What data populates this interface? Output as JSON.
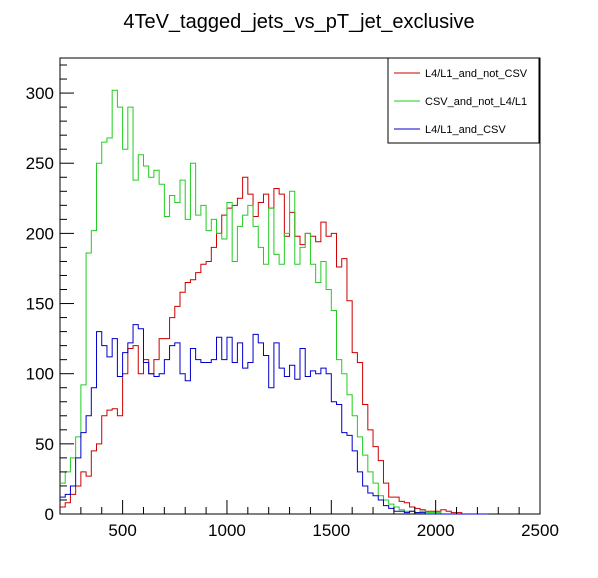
{
  "chart_data": {
    "type": "line",
    "step": true,
    "title": "4TeV_tagged_jets_vs_pT_jet_exclusive",
    "xlabel": "",
    "ylabel": "",
    "xlim": [
      200,
      2500
    ],
    "ylim": [
      0,
      325
    ],
    "bin_width": 25,
    "x_start": 200,
    "x_ticks": [
      500,
      1000,
      1500,
      2000,
      2500
    ],
    "y_ticks": [
      0,
      50,
      100,
      150,
      200,
      250,
      300
    ],
    "x_tick_labels": [
      "500",
      "1000",
      "1500",
      "2000",
      "2500"
    ],
    "y_tick_labels": [
      "0",
      "50",
      "100",
      "150",
      "200",
      "250",
      "300"
    ],
    "grid": false,
    "legend_position": "top-right",
    "series": [
      {
        "name": "L4/L1_and_not_CSV",
        "color": "#cc0000",
        "values": [
          5,
          8,
          14,
          20,
          30,
          27,
          45,
          50,
          70,
          74,
          75,
          70,
          100,
          118,
          120,
          100,
          110,
          100,
          110,
          125,
          125,
          140,
          148,
          158,
          165,
          167,
          172,
          178,
          180,
          190,
          200,
          213,
          218,
          220,
          225,
          240,
          228,
          212,
          222,
          228,
          218,
          232,
          228,
          198,
          215,
          198,
          192,
          200,
          198,
          194,
          208,
          198,
          200,
          176,
          182,
          152,
          115,
          108,
          78,
          60,
          48,
          38,
          22,
          12,
          12,
          9,
          8,
          5,
          4,
          3,
          2,
          2,
          2,
          3,
          2,
          1,
          1,
          0,
          0,
          0,
          0,
          0
        ]
      },
      {
        "name": "CSV_and_not_L4/L1",
        "color": "#22cc22",
        "values": [
          22,
          30,
          40,
          55,
          92,
          186,
          202,
          250,
          265,
          268,
          302,
          290,
          260,
          290,
          238,
          256,
          248,
          240,
          245,
          235,
          212,
          227,
          222,
          238,
          210,
          250,
          213,
          220,
          202,
          210,
          200,
          196,
          222,
          180,
          205,
          213,
          220,
          205,
          190,
          178,
          218,
          185,
          178,
          200,
          230,
          178,
          190,
          200,
          178,
          165,
          180,
          160,
          145,
          110,
          100,
          85,
          70,
          55,
          42,
          30,
          22,
          13,
          10,
          7,
          5,
          3,
          2,
          2,
          1,
          2,
          1,
          1,
          1,
          0,
          0,
          0,
          0,
          0,
          0,
          0,
          0,
          0
        ]
      },
      {
        "name": "L4/L1_and_CSV",
        "color": "#0000cc",
        "values": [
          12,
          14,
          20,
          40,
          58,
          70,
          90,
          130,
          120,
          112,
          125,
          98,
          115,
          122,
          135,
          132,
          108,
          100,
          98,
          100,
          110,
          120,
          122,
          100,
          95,
          118,
          110,
          108,
          108,
          110,
          126,
          110,
          126,
          108,
          122,
          104,
          108,
          128,
          122,
          113,
          90,
          122,
          104,
          98,
          106,
          96,
          118,
          98,
          102,
          100,
          104,
          100,
          80,
          78,
          58,
          56,
          45,
          30,
          20,
          15,
          13,
          10,
          6,
          4,
          2,
          2,
          1,
          2,
          1,
          1,
          0,
          0,
          0,
          0,
          0,
          0,
          0,
          0,
          0,
          0,
          0,
          0
        ]
      }
    ]
  }
}
